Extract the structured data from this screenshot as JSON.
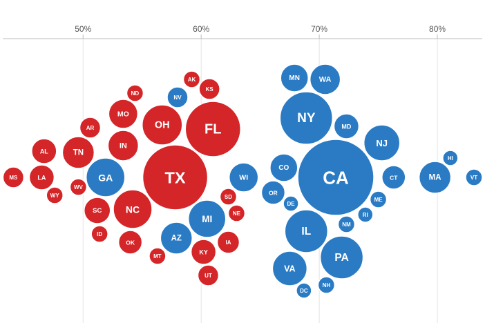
{
  "chart_data": {
    "type": "scatter",
    "x_axis": {
      "ticks": [
        50,
        60,
        70,
        80
      ],
      "tick_labels": [
        "50%",
        "60%",
        "70%",
        "80%"
      ],
      "range": [
        43.2,
        83.8
      ]
    },
    "grid": true,
    "colors": {
      "red": "#d42528",
      "blue": "#2a7bc4"
    },
    "states": [
      {
        "label": "MS",
        "x": 44.1,
        "color": "red",
        "size": 15
      },
      {
        "label": "LA",
        "x": 46.5,
        "color": "red",
        "size": 18
      },
      {
        "label": "AL",
        "x": 46.7,
        "color": "red",
        "size": 18
      },
      {
        "label": "WY",
        "x": 47.6,
        "color": "red",
        "size": 12
      },
      {
        "label": "TN",
        "x": 49.6,
        "color": "red",
        "size": 23
      },
      {
        "label": "WV",
        "x": 49.6,
        "color": "red",
        "size": 12
      },
      {
        "label": "AR",
        "x": 50.6,
        "color": "red",
        "size": 15
      },
      {
        "label": "SC",
        "x": 51.2,
        "color": "red",
        "size": 19
      },
      {
        "label": "ID",
        "x": 51.4,
        "color": "red",
        "size": 12
      },
      {
        "label": "GA",
        "x": 51.9,
        "color": "blue",
        "size": 28
      },
      {
        "label": "MO",
        "x": 53.4,
        "color": "red",
        "size": 21
      },
      {
        "label": "IN",
        "x": 53.4,
        "color": "red",
        "size": 22
      },
      {
        "label": "NC",
        "x": 54.2,
        "color": "red",
        "size": 28
      },
      {
        "label": "OK",
        "x": 54.0,
        "color": "red",
        "size": 17
      },
      {
        "label": "ND",
        "x": 54.4,
        "color": "red",
        "size": 12
      },
      {
        "label": "MT",
        "x": 56.3,
        "color": "red",
        "size": 12
      },
      {
        "label": "OH",
        "x": 56.7,
        "color": "red",
        "size": 29
      },
      {
        "label": "NV",
        "x": 58.0,
        "color": "blue",
        "size": 15
      },
      {
        "label": "AZ",
        "x": 57.9,
        "color": "blue",
        "size": 23
      },
      {
        "label": "TX",
        "x": 57.8,
        "color": "red",
        "size": 47
      },
      {
        "label": "AK",
        "x": 59.2,
        "color": "red",
        "size": 12
      },
      {
        "label": "KY",
        "x": 60.2,
        "color": "red",
        "size": 18
      },
      {
        "label": "MI",
        "x": 60.5,
        "color": "blue",
        "size": 27
      },
      {
        "label": "KS",
        "x": 60.7,
        "color": "red",
        "size": 15
      },
      {
        "label": "UT",
        "x": 60.6,
        "color": "red",
        "size": 15
      },
      {
        "label": "FL",
        "x": 61.0,
        "color": "red",
        "size": 40
      },
      {
        "label": "SD",
        "x": 62.3,
        "color": "red",
        "size": 12
      },
      {
        "label": "IA",
        "x": 62.3,
        "color": "red",
        "size": 16
      },
      {
        "label": "NE",
        "x": 63.0,
        "color": "red",
        "size": 12
      },
      {
        "label": "WI",
        "x": 63.6,
        "color": "blue",
        "size": 21
      },
      {
        "label": "OR",
        "x": 66.1,
        "color": "blue",
        "size": 17
      },
      {
        "label": "CO",
        "x": 67.0,
        "color": "blue",
        "size": 20
      },
      {
        "label": "VA",
        "x": 67.5,
        "color": "blue",
        "size": 25
      },
      {
        "label": "DE",
        "x": 67.6,
        "color": "blue",
        "size": 11
      },
      {
        "label": "MN",
        "x": 67.9,
        "color": "blue",
        "size": 20
      },
      {
        "label": "DC",
        "x": 68.7,
        "color": "blue",
        "size": 11
      },
      {
        "label": "NY",
        "x": 68.9,
        "color": "blue",
        "size": 38
      },
      {
        "label": "IL",
        "x": 68.9,
        "color": "blue",
        "size": 31
      },
      {
        "label": "WA",
        "x": 70.5,
        "color": "blue",
        "size": 22
      },
      {
        "label": "NH",
        "x": 70.6,
        "color": "blue",
        "size": 12
      },
      {
        "label": "CA",
        "x": 71.4,
        "color": "blue",
        "size": 55
      },
      {
        "label": "PA",
        "x": 71.9,
        "color": "blue",
        "size": 31
      },
      {
        "label": "NM",
        "x": 72.3,
        "color": "blue",
        "size": 12
      },
      {
        "label": "MD",
        "x": 72.3,
        "color": "blue",
        "size": 18
      },
      {
        "label": "RI",
        "x": 73.9,
        "color": "blue",
        "size": 11
      },
      {
        "label": "NJ",
        "x": 75.3,
        "color": "blue",
        "size": 26
      },
      {
        "label": "ME",
        "x": 75.0,
        "color": "blue",
        "size": 12
      },
      {
        "label": "CT",
        "x": 76.3,
        "color": "blue",
        "size": 17
      },
      {
        "label": "MA",
        "x": 79.8,
        "color": "blue",
        "size": 23
      },
      {
        "label": "HI",
        "x": 81.1,
        "color": "blue",
        "size": 11
      },
      {
        "label": "VT",
        "x": 83.1,
        "color": "blue",
        "size": 12
      }
    ]
  }
}
